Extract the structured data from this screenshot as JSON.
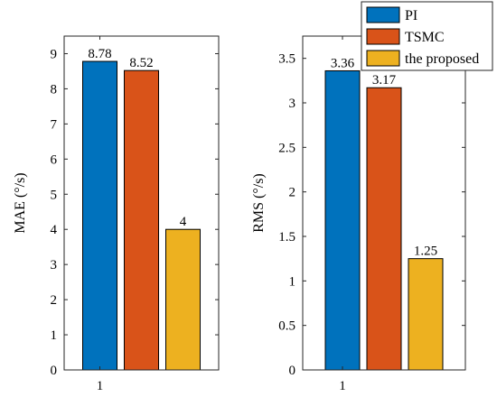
{
  "colors": {
    "PI": "#0072BD",
    "TSMC": "#D95319",
    "the proposed": "#EDB120"
  },
  "chart_data": [
    {
      "type": "bar",
      "categories": [
        "1"
      ],
      "series": [
        {
          "name": "PI",
          "values": [
            8.78
          ]
        },
        {
          "name": "TSMC",
          "values": [
            8.52
          ]
        },
        {
          "name": "the proposed",
          "values": [
            4
          ]
        }
      ],
      "data_labels": [
        "8.78",
        "8.52",
        "4"
      ],
      "ylabel": "MAE (°/s)",
      "xlabel": "",
      "ylim": [
        0,
        9.5
      ],
      "yticks": [
        0,
        1,
        2,
        3,
        4,
        5,
        6,
        7,
        8,
        9
      ],
      "ytick_labels": [
        "0",
        "1",
        "2",
        "3",
        "4",
        "5",
        "6",
        "7",
        "8",
        "9"
      ],
      "grid": false
    },
    {
      "type": "bar",
      "categories": [
        "1"
      ],
      "series": [
        {
          "name": "PI",
          "values": [
            3.36
          ]
        },
        {
          "name": "TSMC",
          "values": [
            3.17
          ]
        },
        {
          "name": "the proposed",
          "values": [
            1.25
          ]
        }
      ],
      "data_labels": [
        "3.36",
        "3.17",
        "1.25"
      ],
      "ylabel": "RMS (°/s)",
      "xlabel": "",
      "ylim": [
        0,
        3.75
      ],
      "yticks": [
        0,
        0.5,
        1,
        1.5,
        2,
        2.5,
        3,
        3.5
      ],
      "ytick_labels": [
        "0",
        "0.5",
        "1",
        "1.5",
        "2",
        "2.5",
        "3",
        "3.5"
      ],
      "grid": false,
      "legend": {
        "placement": "top-right",
        "entries": [
          "PI",
          "TSMC",
          "the proposed"
        ]
      }
    }
  ]
}
